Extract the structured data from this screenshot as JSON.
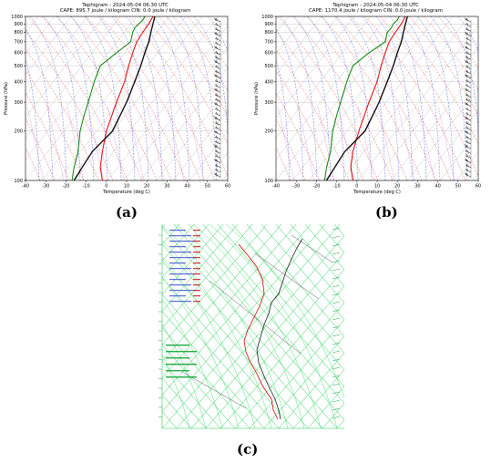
{
  "panels": [
    {
      "id": "a",
      "title": "Tephigram - 2024-05-04 06:30 UTC",
      "subtitle": "CAPE: 895.7 joule / kilogram  CIN: 0.0 joule / kilogram",
      "sublabel": "(a)"
    },
    {
      "id": "b",
      "title": "Tephigram - 2024-05-04 06:30 UTC",
      "subtitle": "CAPE: 1170.4 joule / kilogram  CIN: 0.0 joule / kilogram",
      "sublabel": "(b)"
    },
    {
      "id": "c",
      "sublabel": "(c)"
    }
  ],
  "chart_data": [
    {
      "type": "line",
      "panel": "a",
      "title": "Tephigram - 2024-05-04 06:30 UTC",
      "subtitle": "CAPE: 895.7 joule / kilogram  CIN: 0.0 joule / kilogram",
      "xlabel": "Temperature (deg C)",
      "ylabel": "Pressure (hPa)",
      "xlim": [
        -40,
        60
      ],
      "ylim": [
        1000,
        100
      ],
      "y_scale": "log",
      "xticks": [
        -40,
        -30,
        -20,
        -10,
        0,
        10,
        20,
        30,
        40,
        50,
        60
      ],
      "yticks": [
        100,
        200,
        300,
        400,
        500,
        600,
        700,
        800,
        900,
        1000
      ],
      "grid": true,
      "series": [
        {
          "role": "temperature",
          "color": "#e00000",
          "points": [
            [
              23,
              1000
            ],
            [
              21,
              900
            ],
            [
              18,
              800
            ],
            [
              15,
              700
            ],
            [
              13,
              600
            ],
            [
              11,
              500
            ],
            [
              9,
              400
            ],
            [
              5,
              300
            ],
            [
              0,
              200
            ],
            [
              -2,
              150
            ],
            [
              -3,
              120
            ],
            [
              -2,
              100
            ]
          ]
        },
        {
          "role": "dewpoint",
          "color": "#008000",
          "points": [
            [
              19,
              1000
            ],
            [
              18,
              950
            ],
            [
              16,
              900
            ],
            [
              14,
              850
            ],
            [
              13,
              800
            ],
            [
              12,
              700
            ],
            [
              5,
              600
            ],
            [
              -3,
              500
            ],
            [
              -6,
              400
            ],
            [
              -9,
              300
            ],
            [
              -11,
              250
            ],
            [
              -13,
              200
            ],
            [
              -14,
              150
            ],
            [
              -16,
              120
            ],
            [
              -17,
              100
            ]
          ]
        },
        {
          "role": "parcel",
          "color": "#000000",
          "points": [
            [
              24,
              1000
            ],
            [
              23,
              900
            ],
            [
              22,
              800
            ],
            [
              21,
              700
            ],
            [
              19,
              600
            ],
            [
              17,
              500
            ],
            [
              14,
              400
            ],
            [
              10,
              300
            ],
            [
              3,
              200
            ],
            [
              -7,
              150
            ],
            [
              -12,
              120
            ],
            [
              -16,
              100
            ]
          ]
        }
      ]
    },
    {
      "type": "line",
      "panel": "b",
      "title": "Tephigram - 2024-05-04 06:30 UTC",
      "subtitle": "CAPE: 1170.4 joule / kilogram  CIN: 0.0 joule / kilogram",
      "xlabel": "Temperature (deg C)",
      "ylabel": "Pressure (hPa)",
      "xlim": [
        -40,
        60
      ],
      "ylim": [
        1000,
        100
      ],
      "y_scale": "log",
      "xticks": [
        -40,
        -30,
        -20,
        -10,
        0,
        10,
        20,
        30,
        40,
        50,
        60
      ],
      "yticks": [
        100,
        200,
        300,
        400,
        500,
        600,
        700,
        800,
        900,
        1000
      ],
      "grid": true,
      "series": [
        {
          "role": "temperature",
          "color": "#e00000",
          "points": [
            [
              24,
              1000
            ],
            [
              22,
              900
            ],
            [
              19,
              800
            ],
            [
              16,
              700
            ],
            [
              14,
              600
            ],
            [
              12,
              500
            ],
            [
              10,
              400
            ],
            [
              6,
              300
            ],
            [
              1,
              200
            ],
            [
              -2,
              150
            ],
            [
              -3,
              120
            ],
            [
              -2,
              100
            ]
          ]
        },
        {
          "role": "dewpoint",
          "color": "#008000",
          "points": [
            [
              21,
              1000
            ],
            [
              20,
              950
            ],
            [
              18,
              900
            ],
            [
              17,
              850
            ],
            [
              15,
              800
            ],
            [
              14,
              700
            ],
            [
              6,
              600
            ],
            [
              -2,
              500
            ],
            [
              -5,
              400
            ],
            [
              -8,
              300
            ],
            [
              -10,
              250
            ],
            [
              -12,
              200
            ],
            [
              -13,
              150
            ],
            [
              -15,
              120
            ],
            [
              -16,
              100
            ]
          ]
        },
        {
          "role": "parcel",
          "color": "#000000",
          "points": [
            [
              25,
              1000
            ],
            [
              24,
              900
            ],
            [
              23,
              800
            ],
            [
              22,
              700
            ],
            [
              20,
              600
            ],
            [
              18,
              500
            ],
            [
              15,
              400
            ],
            [
              11,
              300
            ],
            [
              4,
              200
            ],
            [
              -6,
              150
            ],
            [
              -11,
              120
            ],
            [
              -15,
              100
            ]
          ]
        }
      ]
    },
    {
      "type": "line",
      "panel": "c",
      "series": [
        {
          "role": "temperature",
          "color": "#d40000",
          "points": [
            [
              145,
              222
            ],
            [
              140,
              212
            ],
            [
              138,
              200
            ],
            [
              128,
              185
            ],
            [
              122,
              172
            ],
            [
              115,
              160
            ],
            [
              110,
              148
            ],
            [
              108,
              136
            ],
            [
              112,
              124
            ],
            [
              118,
              112
            ],
            [
              125,
              98
            ],
            [
              130,
              84
            ],
            [
              128,
              68
            ],
            [
              122,
              55
            ],
            [
              112,
              42
            ],
            [
              102,
              30
            ]
          ]
        },
        {
          "role": "dewpoint",
          "color": "#202020",
          "points": [
            [
              148,
              222
            ],
            [
              146,
              212
            ],
            [
              142,
              200
            ],
            [
              136,
              188
            ],
            [
              130,
              175
            ],
            [
              124,
              160
            ],
            [
              122,
              146
            ],
            [
              126,
              132
            ],
            [
              130,
              118
            ],
            [
              135,
              106
            ],
            [
              138,
              94
            ],
            [
              146,
              84
            ],
            [
              150,
              72
            ],
            [
              154,
              60
            ],
            [
              160,
              46
            ],
            [
              166,
              34
            ],
            [
              172,
              24
            ]
          ]
        }
      ]
    }
  ]
}
